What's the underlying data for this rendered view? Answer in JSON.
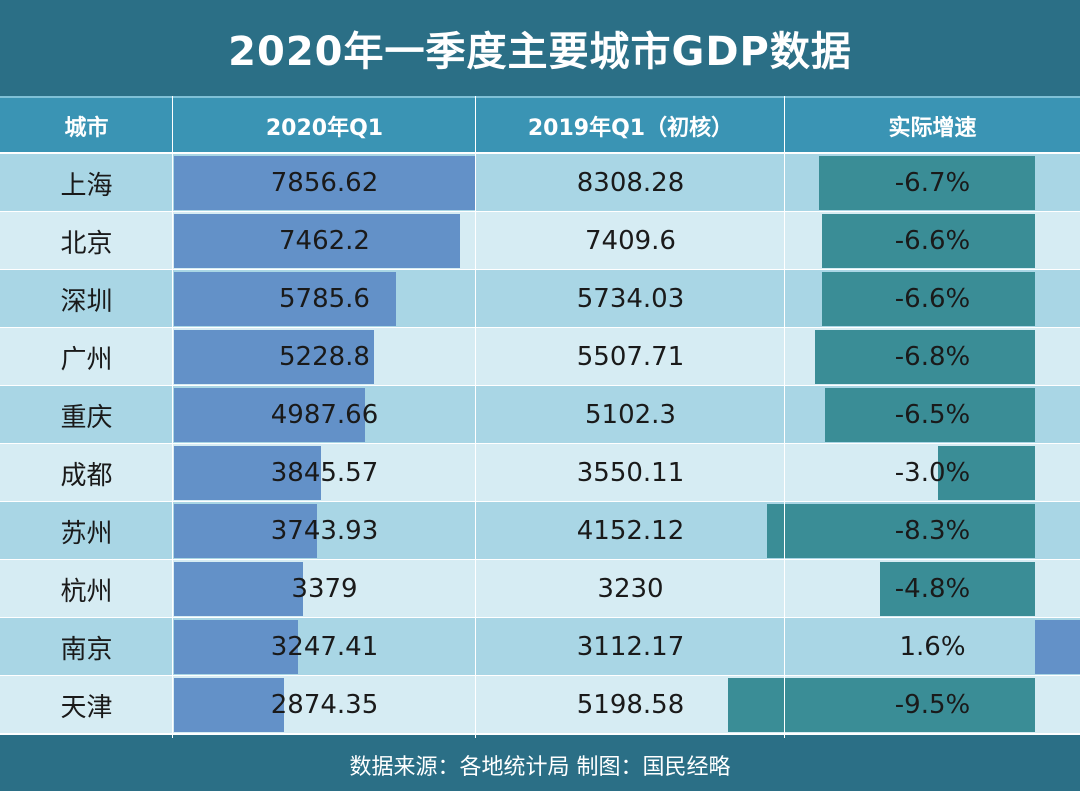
{
  "title": "2020年一季度主要城市GDP数据",
  "columns": [
    "城市",
    "2020年Q1",
    "2019年Q1（初核）",
    "实际增速"
  ],
  "footer": "数据来源：各地统计局 制图：国民经略",
  "colors": {
    "background": "#2b6f86",
    "header": "#3a94b4",
    "row_odd": "#a9d6e5",
    "row_even": "#d6ecf3",
    "gdp_bar": "#6391c8",
    "growth_bar": "#3a8d96"
  },
  "chart_data": {
    "type": "table",
    "title": "2020年一季度主要城市GDP数据",
    "columns": [
      "城市",
      "2020年Q1",
      "2019年Q1（初核）",
      "实际增速"
    ],
    "rows": [
      {
        "city": "上海",
        "gdp_2020q1": "7856.62",
        "gdp_2019q1": "8308.28",
        "growth": "-6.7%",
        "growth_value": -6.7
      },
      {
        "city": "北京",
        "gdp_2020q1": "7462.2",
        "gdp_2019q1": "7409.6",
        "growth": "-6.6%",
        "growth_value": -6.6
      },
      {
        "city": "深圳",
        "gdp_2020q1": "5785.6",
        "gdp_2019q1": "5734.03",
        "growth": "-6.6%",
        "growth_value": -6.6
      },
      {
        "city": "广州",
        "gdp_2020q1": "5228.8",
        "gdp_2019q1": "5507.71",
        "growth": "-6.8%",
        "growth_value": -6.8
      },
      {
        "city": "重庆",
        "gdp_2020q1": "4987.66",
        "gdp_2019q1": "5102.3",
        "growth": "-6.5%",
        "growth_value": -6.5
      },
      {
        "city": "成都",
        "gdp_2020q1": "3845.57",
        "gdp_2019q1": "3550.11",
        "growth": "-3.0%",
        "growth_value": -3.0
      },
      {
        "city": "苏州",
        "gdp_2020q1": "3743.93",
        "gdp_2019q1": "4152.12",
        "growth": "-8.3%",
        "growth_value": -8.3
      },
      {
        "city": "杭州",
        "gdp_2020q1": "3379",
        "gdp_2019q1": "3230",
        "growth": "-4.8%",
        "growth_value": -4.8
      },
      {
        "city": "南京",
        "gdp_2020q1": "3247.41",
        "gdp_2019q1": "3112.17",
        "growth": "1.6%",
        "growth_value": 1.6
      },
      {
        "city": "天津",
        "gdp_2020q1": "2874.35",
        "gdp_2019q1": "5198.58",
        "growth": "-9.5%",
        "growth_value": -9.5
      }
    ]
  }
}
